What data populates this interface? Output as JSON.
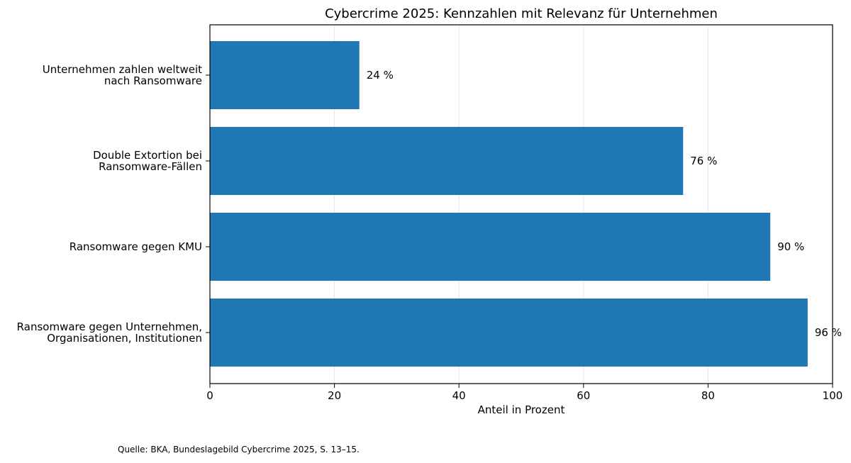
{
  "chart_data": {
    "type": "bar",
    "orientation": "horizontal",
    "title": "Cybercrime 2025: Kennzahlen mit Relevanz für Unternehmen",
    "xlabel": "Anteil in Prozent",
    "ylabel": "",
    "xlim": [
      0,
      100
    ],
    "x_ticks": [
      0,
      20,
      40,
      60,
      80,
      100
    ],
    "grid": "vertical",
    "bar_color": "#1f77b4",
    "categories": [
      [
        "Unternehmen zahlen weltweit",
        "nach Ransomware"
      ],
      [
        "Double Extortion bei",
        "Ransomware-Fällen"
      ],
      [
        "Ransomware gegen KMU"
      ],
      [
        "Ransomware gegen Unternehmen,",
        "Organisationen, Institutionen"
      ]
    ],
    "values": [
      24,
      76,
      90,
      96
    ],
    "value_labels": [
      "24 %",
      "76 %",
      "90 %",
      "96 %"
    ]
  },
  "footer": {
    "source": "Quelle: BKA, Bundeslagebild Cybercrime 2025, S. 13–15."
  }
}
